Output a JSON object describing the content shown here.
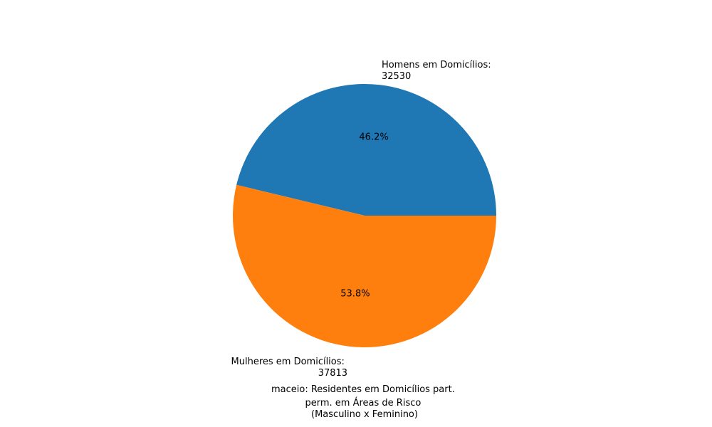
{
  "chart_data": {
    "type": "pie",
    "title_lines": [
      "maceio: Residentes em Domicílios part.",
      "perm. em Áreas de Risco",
      "(Masculino x Feminino)"
    ],
    "slices": [
      {
        "label_line1": "Homens em Domicílios:",
        "label_line2": "32530",
        "value": 32530,
        "percent_text": "46.2%",
        "color": "#1f77b4"
      },
      {
        "label_line1": "Mulheres em Domicílios:",
        "label_line2": "37813",
        "value": 37813,
        "percent_text": "53.8%",
        "color": "#ff7f0e"
      }
    ]
  }
}
